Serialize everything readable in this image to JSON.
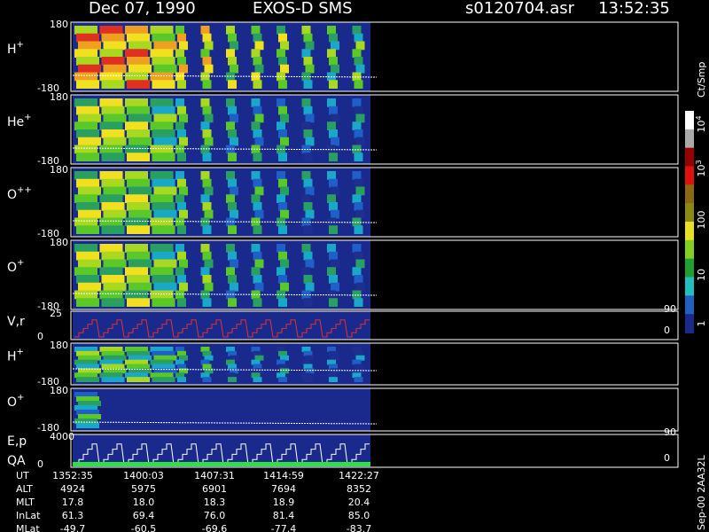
{
  "header": {
    "date": "Dec 07, 1990",
    "instrument": "EXOS-D SMS",
    "file": "s0120704.asr",
    "time": "13:52:35"
  },
  "panels": [
    {
      "label": "H",
      "sup": "+",
      "ytop": "180",
      "ybottom": "-180"
    },
    {
      "label": "He",
      "sup": "+",
      "ytop": "180",
      "ybottom": "-180"
    },
    {
      "label": "O",
      "sup": "++",
      "ytop": "180",
      "ybottom": "-180"
    },
    {
      "label": "O",
      "sup": "+",
      "ytop": "180",
      "ybottom": "-180"
    },
    {
      "label": "V,r",
      "ytop": "25",
      "ybottom": "0",
      "rtop": "90",
      "rbottom": "0"
    },
    {
      "label": "H",
      "sup": "+",
      "ytop": "180",
      "ybottom": "-180"
    },
    {
      "label": "O",
      "sup": "+",
      "ytop": "180",
      "ybottom": "-180"
    },
    {
      "label": "E,p",
      "label2": "QA",
      "ytop": "4000",
      "ybottom": "0",
      "rtop": "90",
      "rbottom": "0"
    }
  ],
  "colorbar": {
    "unit": "Ct/Smp",
    "ticks": [
      {
        "base": "10",
        "exp": "4"
      },
      {
        "base": "10",
        "exp": "3"
      },
      {
        "base": "100"
      },
      {
        "base": "10"
      },
      {
        "base": "1"
      }
    ]
  },
  "footer": {
    "rows": [
      [
        "UT",
        "1352:35",
        "1400:03",
        "1407:31",
        "1414:59",
        "1422:27"
      ],
      [
        "ALT",
        "4924",
        "5975",
        "6901",
        "7694",
        "8352"
      ],
      [
        "MLT",
        "17.8",
        "18.0",
        "18.3",
        "18.9",
        "20.4"
      ],
      [
        "InLat",
        "61.3",
        "69.4",
        "76.0",
        "81.4",
        "85.0"
      ],
      [
        "MLat",
        "-49.7",
        "-60.5",
        "-69.6",
        "-77.4",
        "-83.7"
      ]
    ],
    "note": "Sep-00 2AA32L"
  }
}
